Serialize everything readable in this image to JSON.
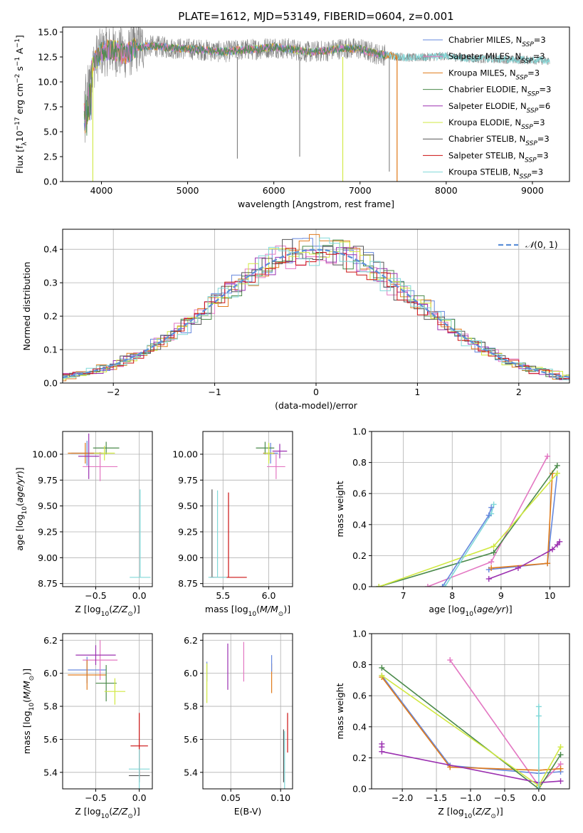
{
  "title": "PLATE=1612, MJD=53149, FIBERID=0604, z=0.001",
  "series_colors": [
    "#6688dd",
    "#e377c2",
    "#e07b1c",
    "#4a8a4a",
    "#9b30b0",
    "#d0e840",
    "#555555",
    "#cc1111",
    "#80d8d8"
  ],
  "chart_data": [
    {
      "id": "spectrum",
      "type": "line",
      "xlabel": "wavelength [Angstrom, rest frame]",
      "ylabel": "Flux [f_λ 10^-17 erg cm^-2 s^-1 A^-1]",
      "xlim": [
        3550,
        9430
      ],
      "ylim": [
        0,
        15.5
      ],
      "xticks": [
        4000,
        5000,
        6000,
        7000,
        8000,
        9000
      ],
      "yticks": [
        0.0,
        2.5,
        5.0,
        7.5,
        10.0,
        12.5,
        15.0
      ],
      "legend_position": "top-right",
      "legend": [
        "Chabrier MILES, N_SSP=3",
        "Salpeter MILES, N_SSP=3",
        "Kroupa MILES, N_SSP=3",
        "Chabrier ELODIE, N_SSP=3",
        "Salpeter ELODIE, N_SSP=6",
        "Kroupa ELODIE, N_SSP=3",
        "Chabrier STELIB, N_SSP=3",
        "Salpeter STELIB, N_SSP=3",
        "Kroupa STELIB, N_SSP=3"
      ],
      "data_note": "grey observed spectrum ~3800-9200 A, level ~12-13; models overplotted",
      "continuum": {
        "x": [
          3800,
          3850,
          3900,
          3950,
          4000,
          4100,
          4200,
          4300,
          4400,
          4600,
          4800,
          5000,
          5200,
          5400,
          5600,
          5800,
          6000,
          6200,
          6400,
          6600,
          6800,
          7000,
          7200,
          7400,
          7600,
          7800,
          8000,
          8200,
          8400,
          8600,
          8800,
          9000,
          9200
        ],
        "y": [
          9.8,
          11.0,
          11.5,
          12.5,
          13.0,
          13.2,
          13.0,
          12.8,
          13.5,
          13.6,
          13.4,
          13.3,
          13.2,
          13.0,
          13.2,
          13.3,
          13.5,
          13.3,
          13.0,
          13.1,
          13.4,
          13.3,
          12.8,
          12.6,
          12.4,
          12.5,
          12.6,
          12.4,
          12.3,
          12.3,
          12.2,
          12.2,
          12.1
        ]
      },
      "drops": [
        {
          "x": 3900,
          "ymin": 0.0
        },
        {
          "x": 5577,
          "ymin": 2.3
        },
        {
          "x": 6300,
          "ymin": 2.5
        },
        {
          "x": 6800,
          "ymin": 0.0
        },
        {
          "x": 7340,
          "ymin": 1.0
        },
        {
          "x": 7430,
          "ymin": 0.0
        }
      ]
    },
    {
      "id": "residuals",
      "type": "line",
      "xlabel": "(data-model)/error",
      "ylabel": "Normed distribution",
      "xlim": [
        -2.5,
        2.5
      ],
      "ylim": [
        0,
        0.46
      ],
      "xticks": [
        -2,
        -1,
        0,
        1,
        2
      ],
      "yticks": [
        0.0,
        0.1,
        0.2,
        0.3,
        0.4
      ],
      "grid": true,
      "legend": [
        "N(0,1)"
      ],
      "legend_position": "top-right"
    },
    {
      "id": "age-vs-Z",
      "type": "scatter",
      "xlabel": "Z [log10(Z/Z☉)]",
      "ylabel": "age [log10(age/yr)]",
      "xlim": [
        -0.88,
        0.15
      ],
      "ylim": [
        8.72,
        10.22
      ],
      "xticks": [
        -0.5,
        0.0
      ],
      "yticks": [
        8.75,
        9.0,
        9.25,
        9.5,
        9.75,
        10.0
      ],
      "grid": true,
      "points": [
        {
          "x": -0.6,
          "y": 10.01,
          "xerr": 0.18,
          "yerr": 0.12,
          "c": 0
        },
        {
          "x": -0.45,
          "y": 9.88,
          "xerr": 0.2,
          "yerr": 0.14,
          "c": 1
        },
        {
          "x": -0.62,
          "y": 10.01,
          "xerr": 0.2,
          "yerr": 0.1,
          "c": 2
        },
        {
          "x": -0.38,
          "y": 10.06,
          "xerr": 0.15,
          "yerr": 0.06,
          "c": 3
        },
        {
          "x": -0.58,
          "y": 9.98,
          "xerr": 0.12,
          "yerr": 0.22,
          "c": 4
        },
        {
          "x": -0.4,
          "y": 10.01,
          "xerr": 0.12,
          "yerr": 0.07,
          "c": 5
        },
        {
          "x": 0.01,
          "y": 8.81,
          "xerr": 0.12,
          "yerr": 0.85,
          "c": 8
        }
      ]
    },
    {
      "id": "age-vs-mass",
      "type": "scatter",
      "xlabel": "mass [log10(M/M☉)]",
      "ylabel": "",
      "xlim": [
        5.28,
        6.26
      ],
      "ylim": [
        8.72,
        10.22
      ],
      "xticks": [
        5.5,
        6.0
      ],
      "yticks": [
        8.75,
        9.0,
        9.25,
        9.5,
        9.75,
        10.0
      ],
      "grid": true,
      "points": [
        {
          "x": 6.02,
          "y": 10.01,
          "xerr": 0.08,
          "yerr": 0.1,
          "c": 0
        },
        {
          "x": 6.08,
          "y": 9.88,
          "xerr": 0.1,
          "yerr": 0.12,
          "c": 1
        },
        {
          "x": 6.0,
          "y": 10.01,
          "xerr": 0.06,
          "yerr": 0.07,
          "c": 2
        },
        {
          "x": 5.96,
          "y": 10.06,
          "xerr": 0.1,
          "yerr": 0.06,
          "c": 3
        },
        {
          "x": 6.12,
          "y": 10.03,
          "xerr": 0.08,
          "yerr": 0.07,
          "c": 4
        },
        {
          "x": 6.0,
          "y": 10.01,
          "xerr": 0.05,
          "yerr": 0.1,
          "c": 5
        },
        {
          "x": 5.38,
          "y": 8.81,
          "xerr": 0.02,
          "yerr": 0.85,
          "c": 6
        },
        {
          "x": 5.56,
          "y": 8.81,
          "xerr": 0.2,
          "yerr": 0.82,
          "c": 7
        },
        {
          "x": 5.44,
          "y": 8.81,
          "xerr": 0.1,
          "yerr": 0.84,
          "c": 8
        }
      ]
    },
    {
      "id": "mass-weight-vs-age",
      "type": "line",
      "xlabel": "age [log10(age/yr)]",
      "ylabel": "mass weight",
      "xlim": [
        6.35,
        10.4
      ],
      "ylim": [
        0.0,
        1.0
      ],
      "xticks": [
        7,
        8,
        9,
        10
      ],
      "yticks": [
        0.0,
        0.2,
        0.4,
        0.6,
        0.8,
        1.0
      ],
      "grid": true,
      "series": [
        {
          "c": 0,
          "x": [
            8.75,
            9.95,
            10.15
          ],
          "y": [
            0.11,
            0.15,
            0.73
          ]
        },
        {
          "c": 1,
          "x": [
            7.5,
            8.8,
            9.95
          ],
          "y": [
            0.0,
            0.16,
            0.84
          ]
        },
        {
          "c": 2,
          "x": [
            8.8,
            9.95,
            10.05
          ],
          "y": [
            0.12,
            0.15,
            0.73
          ]
        },
        {
          "c": 3,
          "x": [
            6.5,
            8.85,
            10.15
          ],
          "y": [
            0.0,
            0.22,
            0.78
          ]
        },
        {
          "c": 4,
          "x": [
            8.75,
            9.35,
            10.05,
            10.15,
            10.2
          ],
          "y": [
            0.05,
            0.12,
            0.24,
            0.27,
            0.29
          ]
        },
        {
          "c": 5,
          "x": [
            6.5,
            8.85,
            10.15
          ],
          "y": [
            0.0,
            0.26,
            0.73
          ]
        },
        {
          "c": 8,
          "x": [
            7.85,
            8.8,
            8.85
          ],
          "y": [
            0.0,
            0.47,
            0.53
          ]
        },
        {
          "c": 0,
          "x": [
            7.8,
            8.75,
            8.8
          ],
          "y": [
            0.0,
            0.46,
            0.51
          ]
        }
      ]
    },
    {
      "id": "mass-vs-Z",
      "type": "scatter",
      "xlabel": "Z [log10(Z/Z☉)]",
      "ylabel": "mass [log10(M/M☉)]",
      "xlim": [
        -0.88,
        0.15
      ],
      "ylim": [
        5.3,
        6.24
      ],
      "xticks": [
        -0.5,
        0.0
      ],
      "yticks": [
        5.4,
        5.6,
        5.8,
        6.0,
        6.2
      ],
      "grid": true,
      "points": [
        {
          "x": -0.6,
          "y": 6.02,
          "xerr": 0.22,
          "yerr": 0.08,
          "c": 0
        },
        {
          "x": -0.45,
          "y": 6.08,
          "xerr": 0.2,
          "yerr": 0.12,
          "c": 1
        },
        {
          "x": -0.6,
          "y": 5.99,
          "xerr": 0.22,
          "yerr": 0.09,
          "c": 2
        },
        {
          "x": -0.38,
          "y": 5.94,
          "xerr": 0.12,
          "yerr": 0.11,
          "c": 3
        },
        {
          "x": -0.5,
          "y": 6.11,
          "xerr": 0.23,
          "yerr": 0.06,
          "c": 4
        },
        {
          "x": -0.28,
          "y": 5.89,
          "xerr": 0.12,
          "yerr": 0.08,
          "c": 5
        },
        {
          "x": 0.0,
          "y": 5.38,
          "xerr": 0.12,
          "yerr": 0.04,
          "c": 6
        },
        {
          "x": 0.0,
          "y": 5.56,
          "xerr": 0.1,
          "yerr": 0.2,
          "c": 7
        },
        {
          "x": 0.0,
          "y": 5.42,
          "xerr": 0.12,
          "yerr": 0.12,
          "c": 8
        }
      ]
    },
    {
      "id": "mass-vs-ebv",
      "type": "scatter",
      "xlabel": "E(B-V)",
      "ylabel": "",
      "xlim": [
        0.022,
        0.112
      ],
      "ylim": [
        5.3,
        6.24
      ],
      "xticks": [
        0.05,
        0.1
      ],
      "yticks": [
        5.4,
        5.6,
        5.8,
        6.0,
        6.2
      ],
      "grid": true,
      "points": [
        {
          "x": 0.026,
          "y": 6.01,
          "yerr": 0.06,
          "c": 0
        },
        {
          "x": 0.026,
          "y": 5.94,
          "yerr": 0.12,
          "c": 5
        },
        {
          "x": 0.047,
          "y": 6.04,
          "yerr": 0.14,
          "c": 4
        },
        {
          "x": 0.063,
          "y": 6.07,
          "yerr": 0.12,
          "c": 1
        },
        {
          "x": 0.091,
          "y": 5.97,
          "yerr": 0.09,
          "c": 2
        },
        {
          "x": 0.091,
          "y": 6.06,
          "yerr": 0.05,
          "c": 0
        },
        {
          "x": 0.103,
          "y": 5.5,
          "yerr": 0.16,
          "c": 6
        },
        {
          "x": 0.104,
          "y": 5.45,
          "yerr": 0.2,
          "c": 8
        },
        {
          "x": 0.107,
          "y": 5.64,
          "yerr": 0.12,
          "c": 7
        }
      ]
    },
    {
      "id": "mass-weight-vs-Z",
      "type": "line",
      "xlabel": "Z [log10(Z/Z☉)]",
      "ylabel": "mass weight",
      "xlim": [
        -2.45,
        0.45
      ],
      "ylim": [
        0.0,
        1.0
      ],
      "xticks": [
        -2.0,
        -1.5,
        -1.0,
        -0.5,
        0.0
      ],
      "yticks": [
        0.0,
        0.2,
        0.4,
        0.6,
        0.8,
        1.0
      ],
      "grid": true,
      "series": [
        {
          "c": 0,
          "x": [
            -2.3,
            -1.3,
            0.0,
            0.32
          ],
          "y": [
            0.73,
            0.15,
            0.1,
            0.11
          ]
        },
        {
          "c": 1,
          "x": [
            -1.3,
            0.0,
            0.32
          ],
          "y": [
            0.83,
            0.02,
            0.16
          ]
        },
        {
          "c": 2,
          "x": [
            -2.3,
            -1.3,
            0.0,
            0.32
          ],
          "y": [
            0.72,
            0.14,
            0.12,
            0.13
          ]
        },
        {
          "c": 3,
          "x": [
            -2.3,
            0.0,
            0.32
          ],
          "y": [
            0.78,
            0.0,
            0.22
          ]
        },
        {
          "c": 4,
          "x": [
            -2.3,
            0.0,
            0.32
          ],
          "y": [
            0.24,
            0.04,
            0.05
          ]
        },
        {
          "c": 4,
          "x": [
            -2.3,
            -2.3
          ],
          "y": [
            0.27,
            0.29
          ]
        },
        {
          "c": 5,
          "x": [
            -2.3,
            0.0,
            0.32
          ],
          "y": [
            0.73,
            0.02,
            0.27
          ]
        },
        {
          "c": 8,
          "x": [
            0.0,
            0.0,
            0.0
          ],
          "y": [
            0.0,
            0.47,
            0.53
          ]
        }
      ]
    }
  ]
}
